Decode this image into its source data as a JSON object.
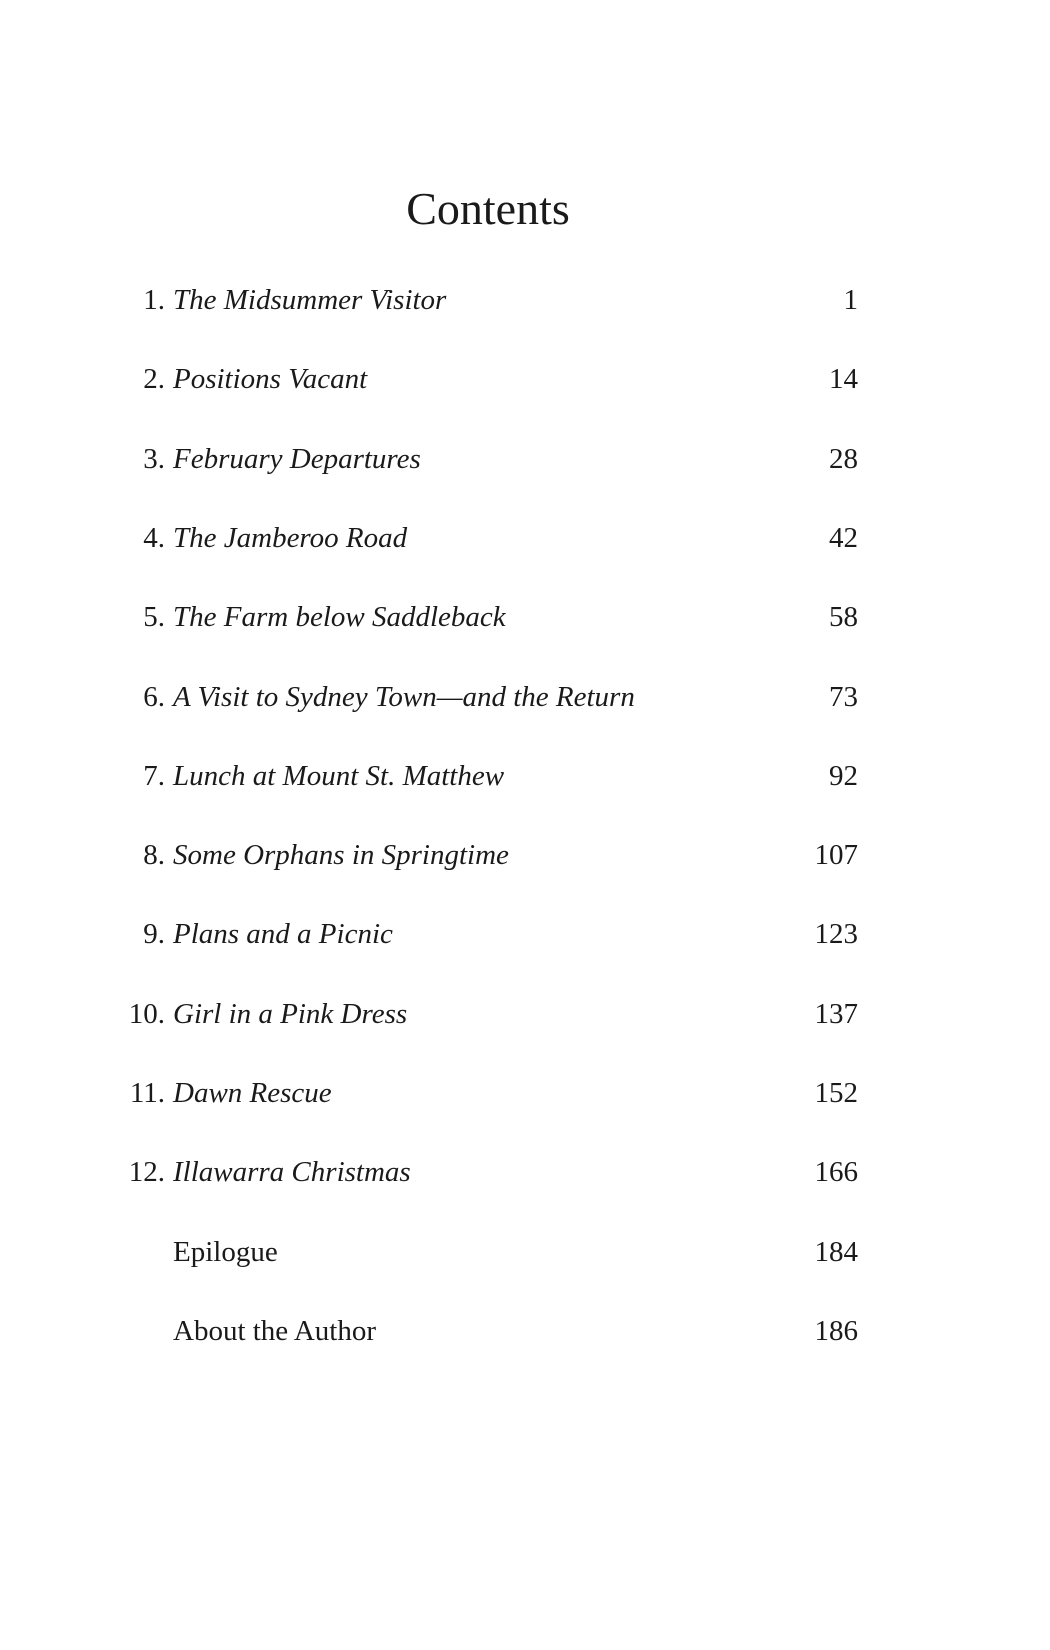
{
  "title": "Contents",
  "entries": [
    {
      "number": "1.",
      "title": "The Midsummer Visitor",
      "page": "1",
      "italic": true
    },
    {
      "number": "2.",
      "title": "Positions Vacant",
      "page": "14",
      "italic": true
    },
    {
      "number": "3.",
      "title": "February Departures",
      "page": "28",
      "italic": true
    },
    {
      "number": "4.",
      "title": "The Jamberoo Road",
      "page": "42",
      "italic": true
    },
    {
      "number": "5.",
      "title": "The Farm below Saddleback",
      "page": "58",
      "italic": true
    },
    {
      "number": "6.",
      "title": "A Visit to Sydney Town—and the Return",
      "page": "73",
      "italic": true
    },
    {
      "number": "7.",
      "title": "Lunch at Mount St. Matthew",
      "page": "92",
      "italic": true
    },
    {
      "number": "8.",
      "title": "Some Orphans in Springtime",
      "page": "107",
      "italic": true
    },
    {
      "number": "9.",
      "title": "Plans and a Picnic",
      "page": "123",
      "italic": true
    },
    {
      "number": "10.",
      "title": "Girl in a Pink Dress",
      "page": "137",
      "italic": true
    },
    {
      "number": "11.",
      "title": "Dawn Rescue",
      "page": "152",
      "italic": true
    },
    {
      "number": "12.",
      "title": "Illawarra Christmas",
      "page": "166",
      "italic": true
    },
    {
      "number": "",
      "title": "Epilogue",
      "page": "184",
      "italic": false
    },
    {
      "number": "",
      "title": "About the Author",
      "page": "186",
      "italic": false
    }
  ]
}
